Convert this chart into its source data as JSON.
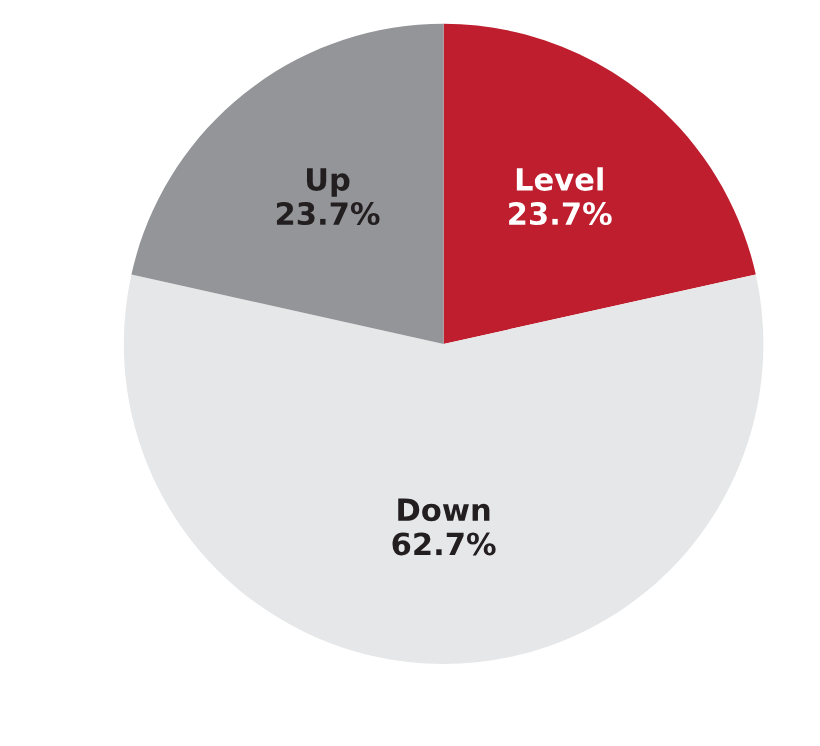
{
  "chart_data": {
    "type": "pie",
    "categories": [
      "Level",
      "Down",
      "Up"
    ],
    "values": [
      23.7,
      62.7,
      23.7
    ],
    "value_labels": [
      "23.7%",
      "62.7%",
      "23.7%"
    ],
    "colors": [
      "#be1e2d",
      "#e6e7e8",
      "#939598"
    ]
  }
}
